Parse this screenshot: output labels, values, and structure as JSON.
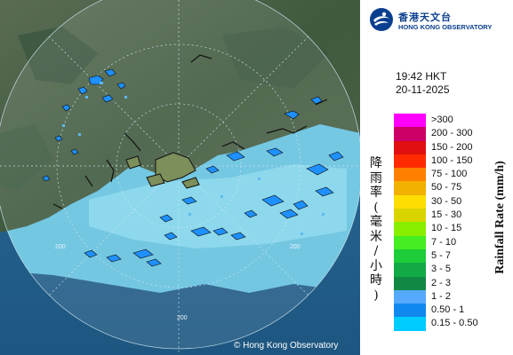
{
  "header": {
    "logo_zh": "香港天文台",
    "logo_en": "HONG KONG OBSERVATORY",
    "time": "19:42 HKT",
    "date": "20-11-2025"
  },
  "map": {
    "range_label": "200",
    "copyright": "© Hong Kong Observatory"
  },
  "legend": {
    "title_zh": "降雨率(毫米/小時)",
    "title_en": "Rainfall Rate (mm/h)",
    "items": [
      {
        "label": ">300",
        "color": "#ff00ff"
      },
      {
        "label": "200 - 300",
        "color": "#cc0066"
      },
      {
        "label": "150 - 200",
        "color": "#e01010"
      },
      {
        "label": "100 - 150",
        "color": "#ff2a00"
      },
      {
        "label": "75 - 100",
        "color": "#ff8000"
      },
      {
        "label": "50 - 75",
        "color": "#f2b000"
      },
      {
        "label": "30 - 50",
        "color": "#ffdd00"
      },
      {
        "label": "15 - 30",
        "color": "#d9d400"
      },
      {
        "label": "10 - 15",
        "color": "#88ee00"
      },
      {
        "label": "7 - 10",
        "color": "#44ee22"
      },
      {
        "label": "5 - 7",
        "color": "#1fcc3a"
      },
      {
        "label": "3 - 5",
        "color": "#11aa44"
      },
      {
        "label": "2 - 3",
        "color": "#118844"
      },
      {
        "label": "1 - 2",
        "color": "#55aaff"
      },
      {
        "label": "0.50 - 1",
        "color": "#1188ee"
      },
      {
        "label": "0.15 - 0.50",
        "color": "#00ccff"
      }
    ]
  }
}
